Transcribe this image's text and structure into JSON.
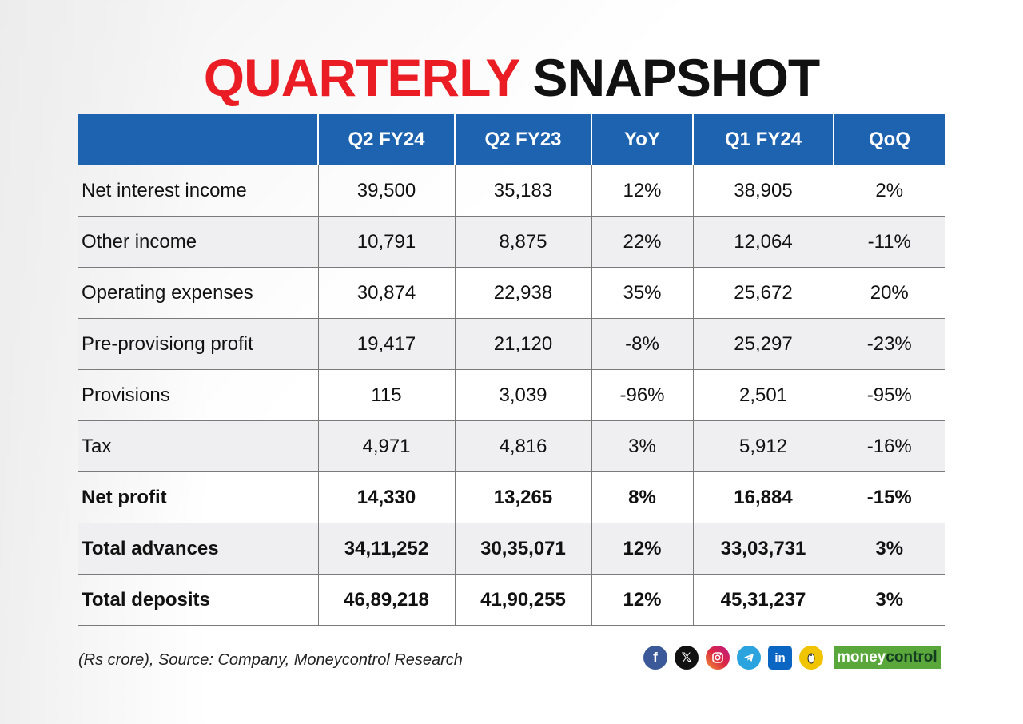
{
  "title": {
    "part1": "QUARTERLY",
    "part2": "SNAPSHOT"
  },
  "table": {
    "headers": [
      "",
      "Q2 FY24",
      "Q2 FY23",
      "YoY",
      "Q1 FY24",
      "QoQ"
    ],
    "rows": [
      {
        "label": "Net interest income",
        "bold": false,
        "values": [
          "39,500",
          "35,183",
          "12%",
          "38,905",
          "2%"
        ]
      },
      {
        "label": "Other income",
        "bold": false,
        "values": [
          "10,791",
          "8,875",
          "22%",
          "12,064",
          "-11%"
        ]
      },
      {
        "label": "Operating expenses",
        "bold": false,
        "values": [
          "30,874",
          "22,938",
          "35%",
          "25,672",
          "20%"
        ]
      },
      {
        "label": "Pre-provisiong profit",
        "bold": false,
        "values": [
          "19,417",
          "21,120",
          "-8%",
          "25,297",
          "-23%"
        ]
      },
      {
        "label": "Provisions",
        "bold": false,
        "values": [
          "115",
          "3,039",
          "-96%",
          "2,501",
          "-95%"
        ]
      },
      {
        "label": "Tax",
        "bold": false,
        "values": [
          "4,971",
          "4,816",
          "3%",
          "5,912",
          "-16%"
        ]
      },
      {
        "label": "Net profit",
        "bold": true,
        "values": [
          "14,330",
          "13,265",
          "8%",
          "16,884",
          "-15%"
        ]
      },
      {
        "label": "Total advances",
        "bold": true,
        "values": [
          "34,11,252",
          "30,35,071",
          "12%",
          "33,03,731",
          "3%"
        ]
      },
      {
        "label": "Total deposits",
        "bold": true,
        "values": [
          "46,89,218",
          "41,90,255",
          "12%",
          "45,31,237",
          "3%"
        ]
      }
    ]
  },
  "footnote": "(Rs crore), Source: Company, Moneycontrol Research",
  "social_icons": [
    "facebook-icon",
    "x-icon",
    "instagram-icon",
    "telegram-icon",
    "linkedin-icon",
    "koo-icon"
  ],
  "brand": {
    "part1": "money",
    "part2": "control"
  },
  "colors": {
    "title_red": "#ea1d24",
    "header_blue": "#1d63b0",
    "brand_green": "#5aa83b"
  }
}
